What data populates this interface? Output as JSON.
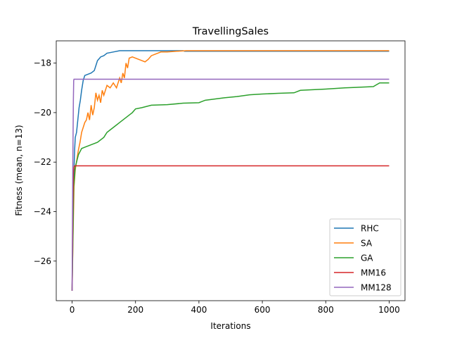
{
  "chart_data": {
    "type": "line",
    "title": "TravellingSales",
    "xlabel": "Iterations",
    "ylabel": "Fitness (mean, n=13)",
    "xlim": [
      -50,
      1050
    ],
    "ylim": [
      -27.6,
      -17.1
    ],
    "xticks": [
      0,
      200,
      400,
      600,
      800,
      1000
    ],
    "yticks": [
      -26,
      -24,
      -22,
      -20,
      -18
    ],
    "grid": false,
    "legend_position": "bottom-right",
    "series": [
      {
        "name": "RHC",
        "color": "#1f77b4",
        "points": [
          [
            0,
            -27.2
          ],
          [
            2,
            -25
          ],
          [
            4,
            -23.3
          ],
          [
            6,
            -22.3
          ],
          [
            8,
            -21.5
          ],
          [
            10,
            -21.0
          ],
          [
            14,
            -20.8
          ],
          [
            18,
            -20.3
          ],
          [
            22,
            -19.8
          ],
          [
            26,
            -19.5
          ],
          [
            30,
            -19.1
          ],
          [
            35,
            -18.7
          ],
          [
            40,
            -18.5
          ],
          [
            50,
            -18.45
          ],
          [
            60,
            -18.4
          ],
          [
            70,
            -18.3
          ],
          [
            80,
            -17.9
          ],
          [
            90,
            -17.75
          ],
          [
            100,
            -17.7
          ],
          [
            110,
            -17.6
          ],
          [
            130,
            -17.55
          ],
          [
            150,
            -17.5
          ],
          [
            200,
            -17.5
          ],
          [
            300,
            -17.5
          ],
          [
            350,
            -17.5
          ],
          [
            355,
            -17.52
          ],
          [
            450,
            -17.52
          ],
          [
            600,
            -17.52
          ],
          [
            1000,
            -17.52
          ]
        ]
      },
      {
        "name": "SA",
        "color": "#ff7f0e",
        "points": [
          [
            0,
            -27.2
          ],
          [
            3,
            -25
          ],
          [
            6,
            -23
          ],
          [
            10,
            -22.3
          ],
          [
            15,
            -21.9
          ],
          [
            20,
            -21.5
          ],
          [
            25,
            -21.2
          ],
          [
            30,
            -20.8
          ],
          [
            35,
            -20.6
          ],
          [
            40,
            -20.4
          ],
          [
            45,
            -20.3
          ],
          [
            50,
            -20.0
          ],
          [
            55,
            -20.3
          ],
          [
            60,
            -19.7
          ],
          [
            65,
            -20.1
          ],
          [
            70,
            -19.8
          ],
          [
            75,
            -19.2
          ],
          [
            80,
            -19.5
          ],
          [
            85,
            -19.3
          ],
          [
            90,
            -19.6
          ],
          [
            95,
            -19.1
          ],
          [
            100,
            -19.3
          ],
          [
            110,
            -18.9
          ],
          [
            120,
            -19.0
          ],
          [
            130,
            -18.8
          ],
          [
            140,
            -19.0
          ],
          [
            150,
            -18.6
          ],
          [
            155,
            -18.8
          ],
          [
            160,
            -18.4
          ],
          [
            165,
            -18.6
          ],
          [
            170,
            -18.0
          ],
          [
            175,
            -18.2
          ],
          [
            180,
            -17.8
          ],
          [
            190,
            -17.75
          ],
          [
            200,
            -17.8
          ],
          [
            210,
            -17.85
          ],
          [
            220,
            -17.9
          ],
          [
            230,
            -17.95
          ],
          [
            240,
            -17.85
          ],
          [
            250,
            -17.7
          ],
          [
            260,
            -17.65
          ],
          [
            270,
            -17.6
          ],
          [
            280,
            -17.55
          ],
          [
            300,
            -17.55
          ],
          [
            330,
            -17.52
          ],
          [
            360,
            -17.5
          ],
          [
            450,
            -17.5
          ],
          [
            1000,
            -17.5
          ]
        ]
      },
      {
        "name": "GA",
        "color": "#2ca02c",
        "points": [
          [
            0,
            -27.2
          ],
          [
            5,
            -23
          ],
          [
            10,
            -22.2
          ],
          [
            20,
            -21.7
          ],
          [
            30,
            -21.45
          ],
          [
            40,
            -21.4
          ],
          [
            60,
            -21.3
          ],
          [
            80,
            -21.2
          ],
          [
            100,
            -21.0
          ],
          [
            110,
            -20.8
          ],
          [
            120,
            -20.7
          ],
          [
            130,
            -20.6
          ],
          [
            140,
            -20.5
          ],
          [
            150,
            -20.4
          ],
          [
            160,
            -20.3
          ],
          [
            170,
            -20.2
          ],
          [
            180,
            -20.1
          ],
          [
            190,
            -20.0
          ],
          [
            200,
            -19.85
          ],
          [
            220,
            -19.8
          ],
          [
            250,
            -19.7
          ],
          [
            300,
            -19.68
          ],
          [
            350,
            -19.62
          ],
          [
            400,
            -19.6
          ],
          [
            410,
            -19.55
          ],
          [
            420,
            -19.5
          ],
          [
            450,
            -19.45
          ],
          [
            480,
            -19.4
          ],
          [
            520,
            -19.35
          ],
          [
            560,
            -19.28
          ],
          [
            600,
            -19.25
          ],
          [
            650,
            -19.22
          ],
          [
            700,
            -19.2
          ],
          [
            720,
            -19.1
          ],
          [
            800,
            -19.05
          ],
          [
            860,
            -19.0
          ],
          [
            950,
            -18.95
          ],
          [
            970,
            -18.8
          ],
          [
            1000,
            -18.8
          ]
        ]
      },
      {
        "name": "MM16",
        "color": "#d62728",
        "points": [
          [
            0,
            -27.2
          ],
          [
            2,
            -24.0
          ],
          [
            4,
            -22.5
          ],
          [
            6,
            -22.2
          ],
          [
            8,
            -22.15
          ],
          [
            1000,
            -22.15
          ]
        ]
      },
      {
        "name": "MM128",
        "color": "#9467bd",
        "points": [
          [
            0,
            -27.2
          ],
          [
            2,
            -22.5
          ],
          [
            4,
            -19.5
          ],
          [
            5,
            -18.7
          ],
          [
            6,
            -18.65
          ],
          [
            1000,
            -18.65
          ]
        ]
      }
    ]
  }
}
